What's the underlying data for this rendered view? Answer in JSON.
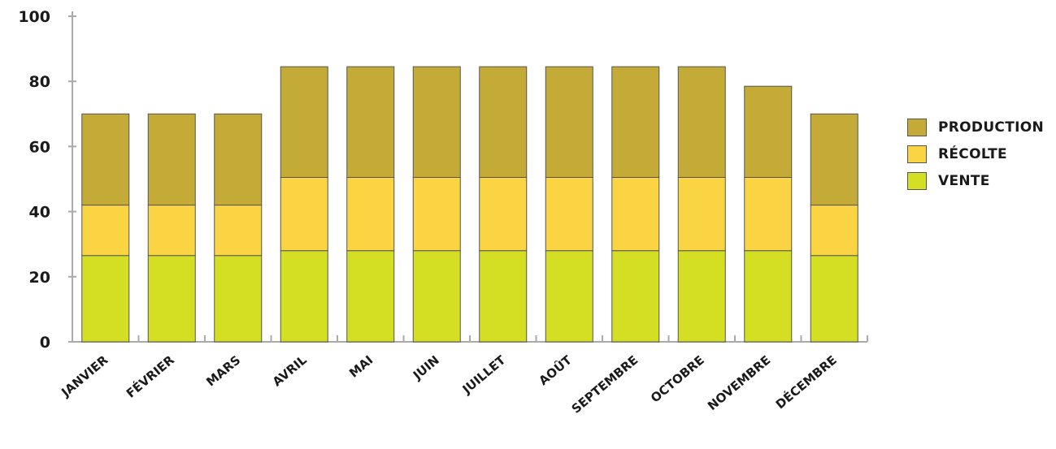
{
  "chart_data": {
    "type": "bar",
    "stacked": true,
    "categories": [
      "JANVIER",
      "FÉVRIER",
      "MARS",
      "AVRIL",
      "MAI",
      "JUIN",
      "JUILLET",
      "AOÛT",
      "SEPTEMBRE",
      "OCTOBRE",
      "NOVEMBRE",
      "DÉCEMBRE"
    ],
    "series": [
      {
        "name": "VENTE",
        "color": "#d4df23",
        "values": [
          26.5,
          26.5,
          26.5,
          28,
          28,
          28,
          28,
          28,
          28,
          28,
          28,
          26.5
        ]
      },
      {
        "name": "RÉCOLTE",
        "color": "#fad442",
        "values": [
          15.5,
          15.5,
          15.5,
          22.5,
          22.5,
          22.5,
          22.5,
          22.5,
          22.5,
          22.5,
          22.5,
          15.5
        ]
      },
      {
        "name": "PRODUCTION",
        "color": "#c4ab38",
        "values": [
          28,
          28,
          28,
          34,
          34,
          34,
          34,
          34,
          34,
          34,
          28,
          28
        ]
      }
    ],
    "legend_order": [
      "PRODUCTION",
      "RÉCOLTE",
      "VENTE"
    ],
    "yticks": [
      "0",
      "20",
      "40",
      "60",
      "80",
      "100"
    ],
    "ylim": [
      0,
      100
    ],
    "grid": false,
    "legend_position": "right",
    "bar_border_color": "#555555",
    "axis_color": "#aaaaaa",
    "title": "",
    "xlabel": "",
    "ylabel": ""
  }
}
